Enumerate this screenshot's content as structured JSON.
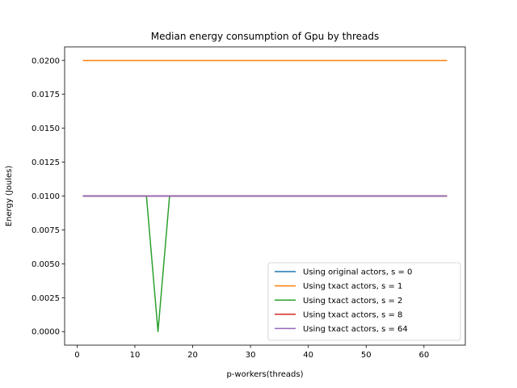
{
  "chart_data": {
    "type": "line",
    "title": "Median energy consumption of Gpu by threads",
    "xlabel": "p-workers(threads)",
    "ylabel": "Energy (Joules)",
    "xlim": [
      -2.15,
      67.15
    ],
    "ylim": [
      -0.001,
      0.021
    ],
    "xticks": [
      0,
      10,
      20,
      30,
      40,
      50,
      60
    ],
    "yticks": [
      0.0,
      0.0025,
      0.005,
      0.0075,
      0.01,
      0.0125,
      0.015,
      0.0175,
      0.02
    ],
    "ytick_labels": [
      "0.0000",
      "0.0025",
      "0.0050",
      "0.0075",
      "0.0100",
      "0.0125",
      "0.0150",
      "0.0175",
      "0.0200"
    ],
    "grid": false,
    "legend_position": "lower-right",
    "series": [
      {
        "name": "Using original actors, s = 0",
        "color": "#1f77b4",
        "x": [
          1,
          2,
          4,
          6,
          8,
          10,
          12,
          14,
          16,
          18,
          20,
          24,
          28,
          32,
          40,
          48,
          56,
          64
        ],
        "y": [
          0.01,
          0.01,
          0.01,
          0.01,
          0.01,
          0.01,
          0.01,
          0.01,
          0.01,
          0.01,
          0.01,
          0.01,
          0.01,
          0.01,
          0.01,
          0.01,
          0.01,
          0.01
        ]
      },
      {
        "name": "Using txact actors, s = 1",
        "color": "#ff7f0e",
        "x": [
          1,
          2,
          4,
          6,
          8,
          10,
          12,
          14,
          16,
          18,
          20,
          24,
          28,
          32,
          40,
          48,
          56,
          64
        ],
        "y": [
          0.02,
          0.02,
          0.02,
          0.02,
          0.02,
          0.02,
          0.02,
          0.02,
          0.02,
          0.02,
          0.02,
          0.02,
          0.02,
          0.02,
          0.02,
          0.02,
          0.02,
          0.02
        ]
      },
      {
        "name": "Using txact actors, s = 2",
        "color": "#2ca02c",
        "x": [
          1,
          2,
          4,
          6,
          8,
          10,
          12,
          14,
          16,
          18,
          20,
          24,
          28,
          32,
          40,
          48,
          56,
          64
        ],
        "y": [
          0.01,
          0.01,
          0.01,
          0.01,
          0.01,
          0.01,
          0.01,
          0.0,
          0.01,
          0.01,
          0.01,
          0.01,
          0.01,
          0.01,
          0.01,
          0.01,
          0.01,
          0.01
        ]
      },
      {
        "name": "Using txact actors, s = 8",
        "color": "#d62728",
        "x": [
          1,
          2,
          4,
          6,
          8,
          10,
          12,
          14,
          16,
          18,
          20,
          24,
          28,
          32,
          40,
          48,
          56,
          64
        ],
        "y": [
          0.01,
          0.01,
          0.01,
          0.01,
          0.01,
          0.01,
          0.01,
          0.01,
          0.01,
          0.01,
          0.01,
          0.01,
          0.01,
          0.01,
          0.01,
          0.01,
          0.01,
          0.01
        ]
      },
      {
        "name": "Using txact actors, s = 64",
        "color": "#9467bd",
        "x": [
          1,
          2,
          4,
          6,
          8,
          10,
          12,
          14,
          16,
          18,
          20,
          24,
          28,
          32,
          40,
          48,
          56,
          64
        ],
        "y": [
          0.01,
          0.01,
          0.01,
          0.01,
          0.01,
          0.01,
          0.01,
          0.01,
          0.01,
          0.01,
          0.01,
          0.01,
          0.01,
          0.01,
          0.01,
          0.01,
          0.01,
          0.01
        ]
      }
    ]
  }
}
